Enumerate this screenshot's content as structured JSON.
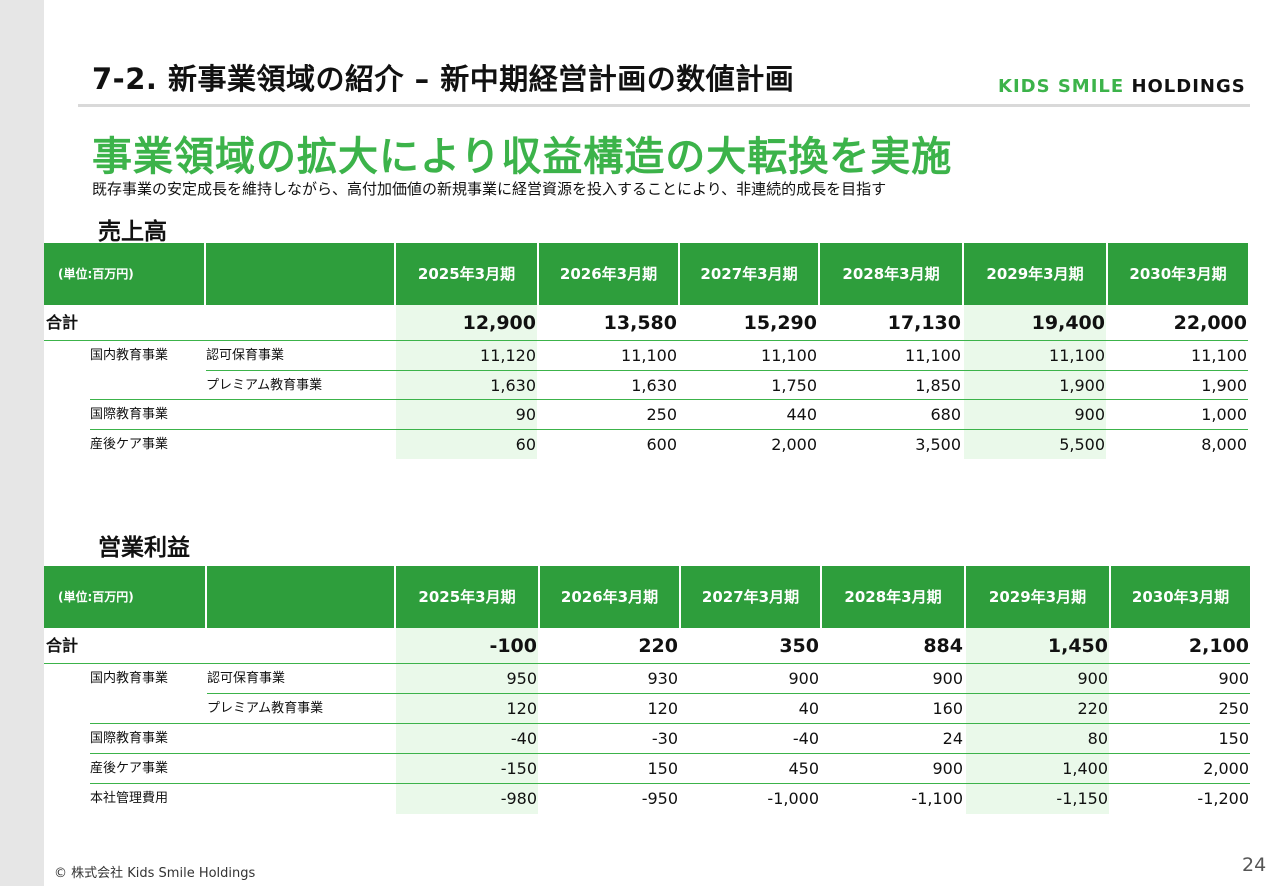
{
  "header": {
    "title": "7-2. 新事業領域の紹介 – 新中期経営計画の数値計画",
    "logo_left": "KIDS SMILE",
    "logo_right": "HOLDINGS"
  },
  "headline": "事業領域の拡大により収益構造の大転換を実施",
  "subheadline": "既存事業の安定成長を維持しながら、高付加価値の新規事業に経営資源を投入することにより、非連続的成長を目指す",
  "colors": {
    "accent": "#3cb34a",
    "header_bg": "#2e9e3c",
    "highlight": "#eaf9ea"
  },
  "revenue": {
    "section_title": "売上高",
    "unit": "(単位:百万円)",
    "years": [
      "2025年3月期",
      "2026年3月期",
      "2027年3月期",
      "2028年3月期",
      "2029年3月期",
      "2030年3月期"
    ],
    "rows": [
      {
        "label": "合計",
        "sub": "",
        "total": true,
        "values": [
          "12,900",
          "13,580",
          "15,290",
          "17,130",
          "19,400",
          "22,000"
        ]
      },
      {
        "label": "国内教育事業",
        "sub": "認可保育事業",
        "values": [
          "11,120",
          "11,100",
          "11,100",
          "11,100",
          "11,100",
          "11,100"
        ]
      },
      {
        "label": "",
        "sub": "プレミアム教育事業",
        "values": [
          "1,630",
          "1,630",
          "1,750",
          "1,850",
          "1,900",
          "1,900"
        ]
      },
      {
        "label": "国際教育事業",
        "sub": "",
        "values": [
          "90",
          "250",
          "440",
          "680",
          "900",
          "1,000"
        ]
      },
      {
        "label": "産後ケア事業",
        "sub": "",
        "values": [
          "60",
          "600",
          "2,000",
          "3,500",
          "5,500",
          "8,000"
        ]
      }
    ]
  },
  "operating_profit": {
    "section_title": "営業利益",
    "unit": "(単位:百万円)",
    "years": [
      "2025年3月期",
      "2026年3月期",
      "2027年3月期",
      "2028年3月期",
      "2029年3月期",
      "2030年3月期"
    ],
    "rows": [
      {
        "label": "合計",
        "sub": "",
        "total": true,
        "values": [
          "-100",
          "220",
          "350",
          "884",
          "1,450",
          "2,100"
        ]
      },
      {
        "label": "国内教育事業",
        "sub": "認可保育事業",
        "values": [
          "950",
          "930",
          "900",
          "900",
          "900",
          "900"
        ]
      },
      {
        "label": "",
        "sub": "プレミアム教育事業",
        "values": [
          "120",
          "120",
          "40",
          "160",
          "220",
          "250"
        ]
      },
      {
        "label": "国際教育事業",
        "sub": "",
        "values": [
          "-40",
          "-30",
          "-40",
          "24",
          "80",
          "150"
        ]
      },
      {
        "label": "産後ケア事業",
        "sub": "",
        "values": [
          "-150",
          "150",
          "450",
          "900",
          "1,400",
          "2,000"
        ]
      },
      {
        "label": "本社管理費用",
        "sub": "",
        "values": [
          "-980",
          "-950",
          "-1,000",
          "-1,100",
          "-1,150",
          "-1,200"
        ]
      }
    ]
  },
  "footer": {
    "copyright": "© 株式会社 Kids Smile Holdings",
    "page": "24"
  }
}
